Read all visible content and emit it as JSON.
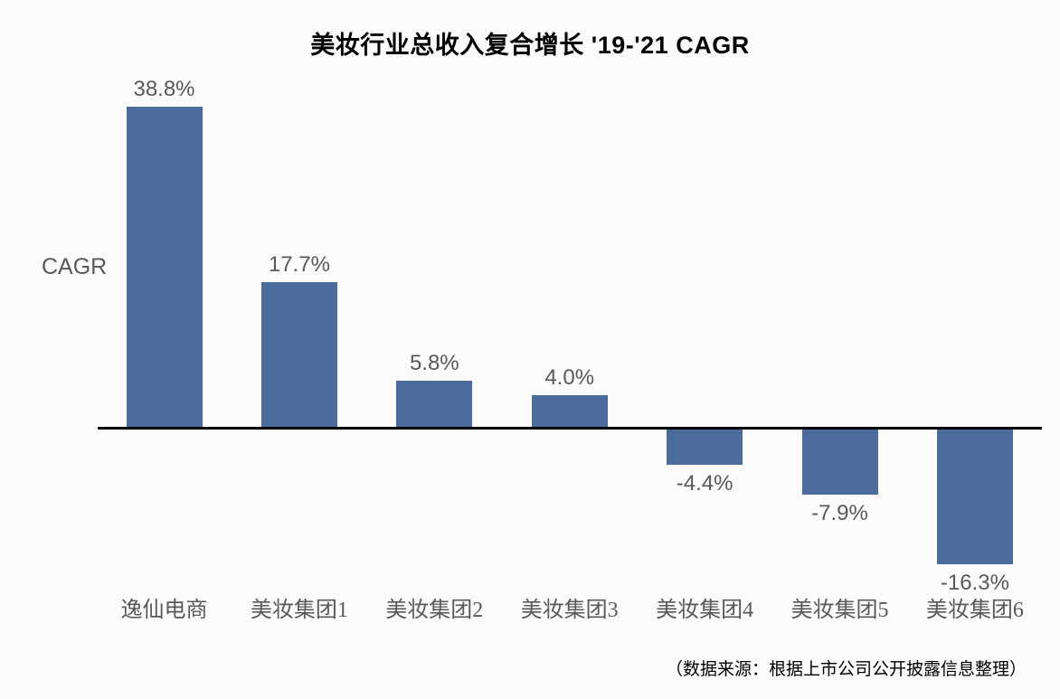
{
  "chart_data": {
    "type": "bar",
    "title": "美妆行业总收入复合增长 '19-'21 CAGR",
    "ylabel": "CAGR",
    "xlabel": "",
    "categories": [
      "逸仙电商",
      "美妆集团1",
      "美妆集团2",
      "美妆集团3",
      "美妆集团4",
      "美妆集团5",
      "美妆集团6"
    ],
    "values": [
      38.8,
      17.7,
      5.8,
      4.0,
      -4.4,
      -7.9,
      -16.3
    ],
    "value_labels": [
      "38.8%",
      "17.7%",
      "5.8%",
      "4.0%",
      "-4.4%",
      "-7.9%",
      "-16.3%"
    ],
    "source_note": "（数据来源：根据上市公司公开披露信息整理）",
    "bar_color": "#4C6D9C",
    "label_color": "#595959",
    "axis_color": "#000000",
    "background_color": "#FBFBFB",
    "ylim": [
      -20,
      42
    ],
    "grid": false,
    "legend": null
  }
}
